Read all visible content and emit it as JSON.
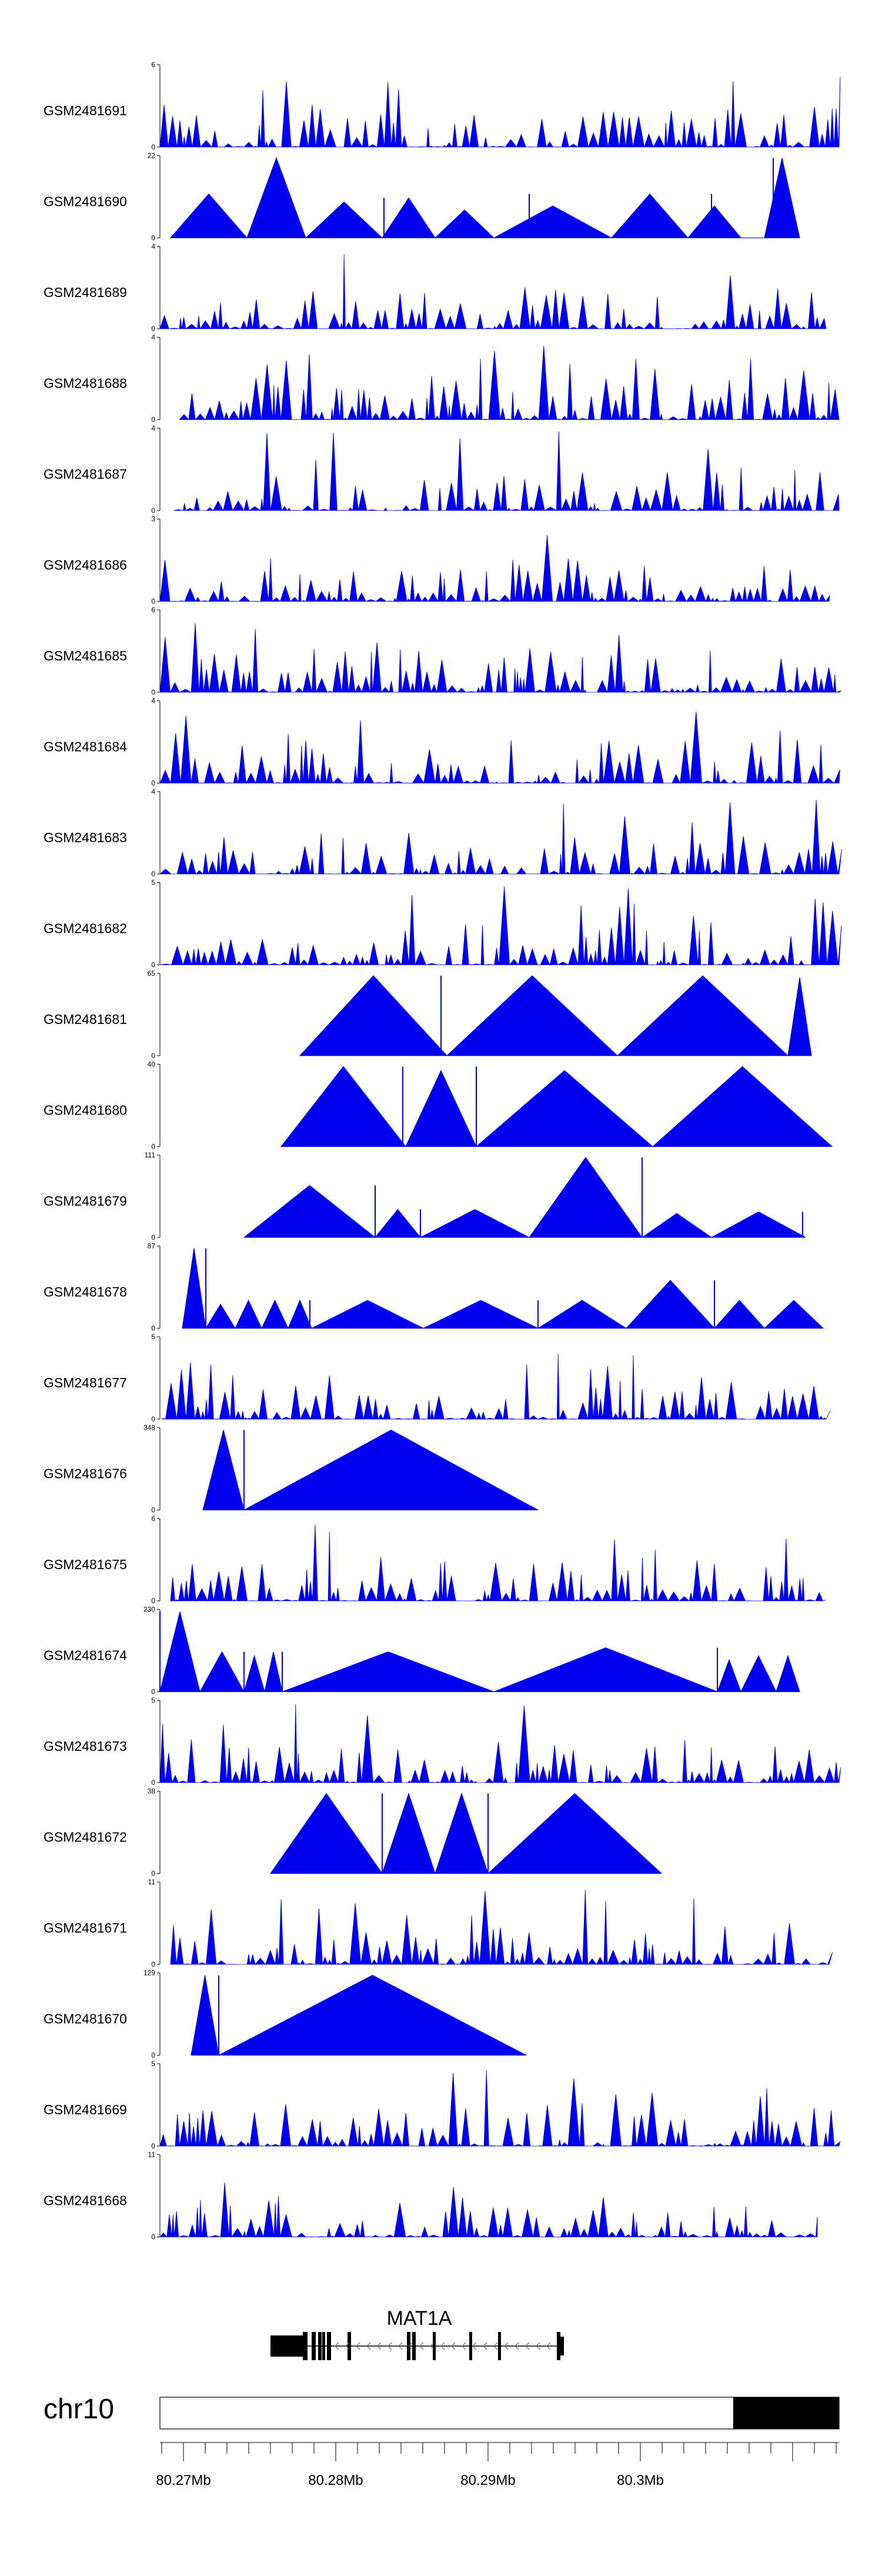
{
  "chart_data": {
    "type": "area",
    "colors": {
      "signal": "#0000ee",
      "gene": "#000000",
      "ideogram_band": "#000000"
    },
    "gene": {
      "name": "MAT1A",
      "strand": "minus"
    },
    "chromosome": "chr10",
    "axis_ticks": [
      "80.27Mb",
      "80.28Mb",
      "80.29Mb",
      "80.3Mb"
    ],
    "tracks": [
      {
        "name": "GSM2481691",
        "ymax": "6",
        "ymin": "0"
      },
      {
        "name": "GSM2481690",
        "ymax": "22",
        "ymin": "0"
      },
      {
        "name": "GSM2481689",
        "ymax": "4",
        "ymin": "0"
      },
      {
        "name": "GSM2481688",
        "ymax": "4",
        "ymin": "0"
      },
      {
        "name": "GSM2481687",
        "ymax": "4",
        "ymin": "0"
      },
      {
        "name": "GSM2481686",
        "ymax": "3",
        "ymin": "0"
      },
      {
        "name": "GSM2481685",
        "ymax": "6",
        "ymin": "0"
      },
      {
        "name": "GSM2481684",
        "ymax": "4",
        "ymin": "0"
      },
      {
        "name": "GSM2481683",
        "ymax": "4",
        "ymin": "0"
      },
      {
        "name": "GSM2481682",
        "ymax": "5",
        "ymin": "0"
      },
      {
        "name": "GSM2481681",
        "ymax": "65",
        "ymin": "0"
      },
      {
        "name": "GSM2481680",
        "ymax": "40",
        "ymin": "0"
      },
      {
        "name": "GSM2481679",
        "ymax": "111",
        "ymin": "0"
      },
      {
        "name": "GSM2481678",
        "ymax": "87",
        "ymin": "0"
      },
      {
        "name": "GSM2481677",
        "ymax": "5",
        "ymin": "0"
      },
      {
        "name": "GSM2481676",
        "ymax": "348",
        "ymin": "0"
      },
      {
        "name": "GSM2481675",
        "ymax": "6",
        "ymin": "0"
      },
      {
        "name": "GSM2481674",
        "ymax": "230",
        "ymin": "0"
      },
      {
        "name": "GSM2481673",
        "ymax": "5",
        "ymin": "0"
      },
      {
        "name": "GSM2481672",
        "ymax": "38",
        "ymin": "0"
      },
      {
        "name": "GSM2481671",
        "ymax": "11",
        "ymin": "0"
      },
      {
        "name": "GSM2481670",
        "ymax": "129",
        "ymin": "0"
      },
      {
        "name": "GSM2481669",
        "ymax": "5",
        "ymin": "0"
      },
      {
        "name": "GSM2481668",
        "ymax": "11",
        "ymin": "0"
      }
    ]
  }
}
